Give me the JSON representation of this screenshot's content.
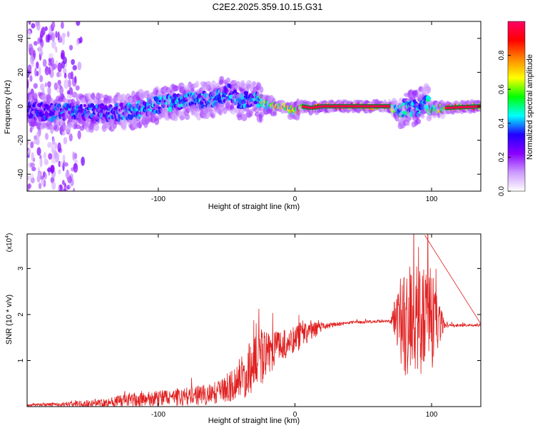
{
  "title": "C2E2.2025.359.10.15.G31",
  "chart_data": [
    {
      "type": "heatmap",
      "title": "C2E2.2025.359.10.15.G31",
      "xlabel": "Height of straight line (km)",
      "ylabel": "Frequency (Hz)",
      "xlim": [
        -196,
        136
      ],
      "ylim": [
        -50,
        50
      ],
      "xticks": [
        -100,
        0,
        100
      ],
      "yticks": [
        -40,
        -20,
        0,
        20,
        40
      ],
      "colorbar": {
        "label": "Normalized spectral amplitude",
        "range": [
          0,
          1
        ],
        "ticks": [
          "0.0",
          "0.2",
          "0.4",
          "0.6",
          "0.8"
        ],
        "tick_values": [
          0,
          0.2,
          0.4,
          0.6,
          0.8
        ],
        "colors": [
          "#ffffff",
          "#cc99ff",
          "#8800ff",
          "#2200ff",
          "#00ffff",
          "#00ff00",
          "#ffff00",
          "#ff8800",
          "#ff0000",
          "#ff0066"
        ]
      },
      "ridge_x": [
        -196,
        -180,
        -160,
        -140,
        -120,
        -100,
        -80,
        -60,
        -48,
        -40,
        -30,
        -22,
        -15,
        -8,
        0,
        5,
        12,
        20,
        40,
        60,
        70,
        75,
        80,
        85,
        90,
        95,
        100,
        110,
        136
      ],
      "ridge_y": [
        -2,
        -4,
        -3,
        -4,
        -3,
        1,
        3,
        4,
        8,
        3,
        4,
        1,
        0,
        0,
        -3,
        0,
        -1,
        0,
        0,
        0,
        0,
        -3,
        -1,
        -1,
        -1,
        3,
        -1,
        -1,
        0
      ],
      "ridge_amplitude": [
        0.35,
        0.4,
        0.4,
        0.4,
        0.42,
        0.45,
        0.45,
        0.45,
        0.45,
        0.45,
        0.45,
        0.6,
        0.8,
        0.85,
        0.75,
        0.85,
        0.85,
        0.95,
        0.95,
        0.95,
        0.9,
        0.6,
        0.5,
        0.45,
        0.45,
        0.45,
        0.6,
        0.85,
        0.95
      ],
      "scatter_range_x": [
        -196,
        -150
      ]
    },
    {
      "type": "line",
      "xlabel": "Height of straight line (km)",
      "ylabel": "SNR (10 * v/v)",
      "scale_label": "(x10",
      "scale_exp": "4",
      "scale_close": ")",
      "xlim": [
        -196,
        136
      ],
      "ylim": [
        0,
        3.75
      ],
      "xticks": [
        -100,
        0,
        100
      ],
      "yticks": [
        1,
        2,
        3
      ],
      "color": "#e02020",
      "envelope_x": [
        -196,
        -160,
        -140,
        -120,
        -100,
        -80,
        -60,
        -45,
        -35,
        -25,
        -15,
        -5,
        0,
        10,
        20,
        30,
        40,
        60,
        70,
        75,
        80,
        90,
        100,
        110,
        136
      ],
      "baseline": [
        0.03,
        0.05,
        0.08,
        0.12,
        0.16,
        0.2,
        0.25,
        0.45,
        0.7,
        1.0,
        1.2,
        1.35,
        1.45,
        1.6,
        1.72,
        1.78,
        1.82,
        1.85,
        1.85,
        1.88,
        1.8,
        1.75,
        1.78,
        1.76,
        1.76
      ],
      "noise": [
        0.02,
        0.08,
        0.12,
        0.2,
        0.22,
        0.25,
        0.3,
        0.45,
        0.7,
        0.8,
        0.5,
        0.35,
        0.4,
        0.35,
        0.1,
        0.05,
        0.04,
        0.04,
        0.05,
        0.8,
        1.7,
        1.5,
        1.4,
        0.05,
        0.03
      ],
      "peak_value": 3.72,
      "peak_x": 95
    }
  ]
}
